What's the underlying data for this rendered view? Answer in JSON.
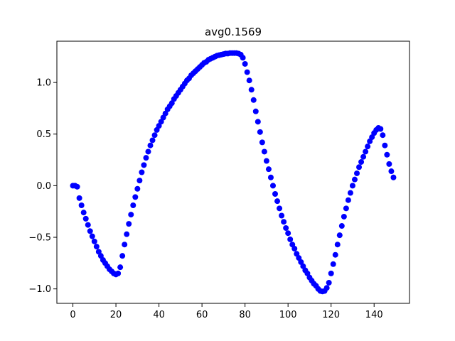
{
  "chart_data": {
    "type": "scatter",
    "title": "avg0.1569",
    "x": [
      0,
      1,
      2,
      3,
      4,
      5,
      6,
      7,
      8,
      9,
      10,
      11,
      12,
      13,
      14,
      15,
      16,
      17,
      18,
      19,
      20,
      21,
      22,
      23,
      24,
      25,
      26,
      27,
      28,
      29,
      30,
      31,
      32,
      33,
      34,
      35,
      36,
      37,
      38,
      39,
      40,
      41,
      42,
      43,
      44,
      45,
      46,
      47,
      48,
      49,
      50,
      51,
      52,
      53,
      54,
      55,
      56,
      57,
      58,
      59,
      60,
      61,
      62,
      63,
      64,
      65,
      66,
      67,
      68,
      69,
      70,
      71,
      72,
      73,
      74,
      75,
      76,
      77,
      78,
      79,
      80,
      81,
      82,
      83,
      84,
      85,
      86,
      87,
      88,
      89,
      90,
      91,
      92,
      93,
      94,
      95,
      96,
      97,
      98,
      99,
      100,
      101,
      102,
      103,
      104,
      105,
      106,
      107,
      108,
      109,
      110,
      111,
      112,
      113,
      114,
      115,
      116,
      117,
      118,
      119,
      120,
      121,
      122,
      123,
      124,
      125,
      126,
      127,
      128,
      129,
      130,
      131,
      132,
      133,
      134,
      135,
      136,
      137,
      138,
      139,
      140,
      141,
      142,
      143,
      144,
      145,
      146,
      147,
      148,
      149
    ],
    "series": [
      {
        "color": "#0000ff",
        "values": [
          0.0,
          0.0,
          -0.01,
          -0.12,
          -0.19,
          -0.26,
          -0.32,
          -0.38,
          -0.44,
          -0.49,
          -0.54,
          -0.59,
          -0.64,
          -0.68,
          -0.72,
          -0.75,
          -0.78,
          -0.81,
          -0.83,
          -0.85,
          -0.86,
          -0.85,
          -0.79,
          -0.68,
          -0.57,
          -0.47,
          -0.37,
          -0.28,
          -0.19,
          -0.11,
          -0.03,
          0.05,
          0.13,
          0.2,
          0.27,
          0.33,
          0.39,
          0.44,
          0.49,
          0.54,
          0.58,
          0.62,
          0.66,
          0.7,
          0.74,
          0.77,
          0.8,
          0.84,
          0.87,
          0.9,
          0.93,
          0.96,
          0.99,
          1.02,
          1.04,
          1.07,
          1.09,
          1.11,
          1.13,
          1.15,
          1.17,
          1.19,
          1.2,
          1.22,
          1.23,
          1.24,
          1.25,
          1.26,
          1.265,
          1.27,
          1.275,
          1.28,
          1.28,
          1.285,
          1.285,
          1.285,
          1.285,
          1.28,
          1.27,
          1.24,
          1.18,
          1.1,
          1.02,
          0.93,
          0.83,
          0.72,
          0.62,
          0.52,
          0.42,
          0.33,
          0.24,
          0.16,
          0.08,
          0.0,
          -0.08,
          -0.15,
          -0.22,
          -0.29,
          -0.35,
          -0.41,
          -0.46,
          -0.52,
          -0.57,
          -0.61,
          -0.66,
          -0.7,
          -0.74,
          -0.78,
          -0.82,
          -0.85,
          -0.89,
          -0.92,
          -0.95,
          -0.97,
          -1.0,
          -1.02,
          -1.025,
          -1.02,
          -0.99,
          -0.94,
          -0.85,
          -0.76,
          -0.67,
          -0.57,
          -0.48,
          -0.39,
          -0.3,
          -0.22,
          -0.14,
          -0.07,
          0.0,
          0.06,
          0.12,
          0.18,
          0.23,
          0.28,
          0.33,
          0.38,
          0.43,
          0.47,
          0.51,
          0.54,
          0.56,
          0.55,
          0.49,
          0.39,
          0.3,
          0.21,
          0.14,
          0.08
        ]
      }
    ],
    "xlim": [
      -7.45,
      156.45
    ],
    "ylim": [
      -1.14,
      1.4
    ],
    "xticks": [
      0,
      20,
      40,
      60,
      80,
      100,
      120,
      140
    ],
    "yticks": [
      {
        "value": -1.0,
        "label": "−1.0"
      },
      {
        "value": -0.5,
        "label": "−0.5"
      },
      {
        "value": 0.0,
        "label": "0.0"
      },
      {
        "value": 0.5,
        "label": "0.5"
      },
      {
        "value": 1.0,
        "label": "1.0"
      }
    ],
    "grid": false
  }
}
